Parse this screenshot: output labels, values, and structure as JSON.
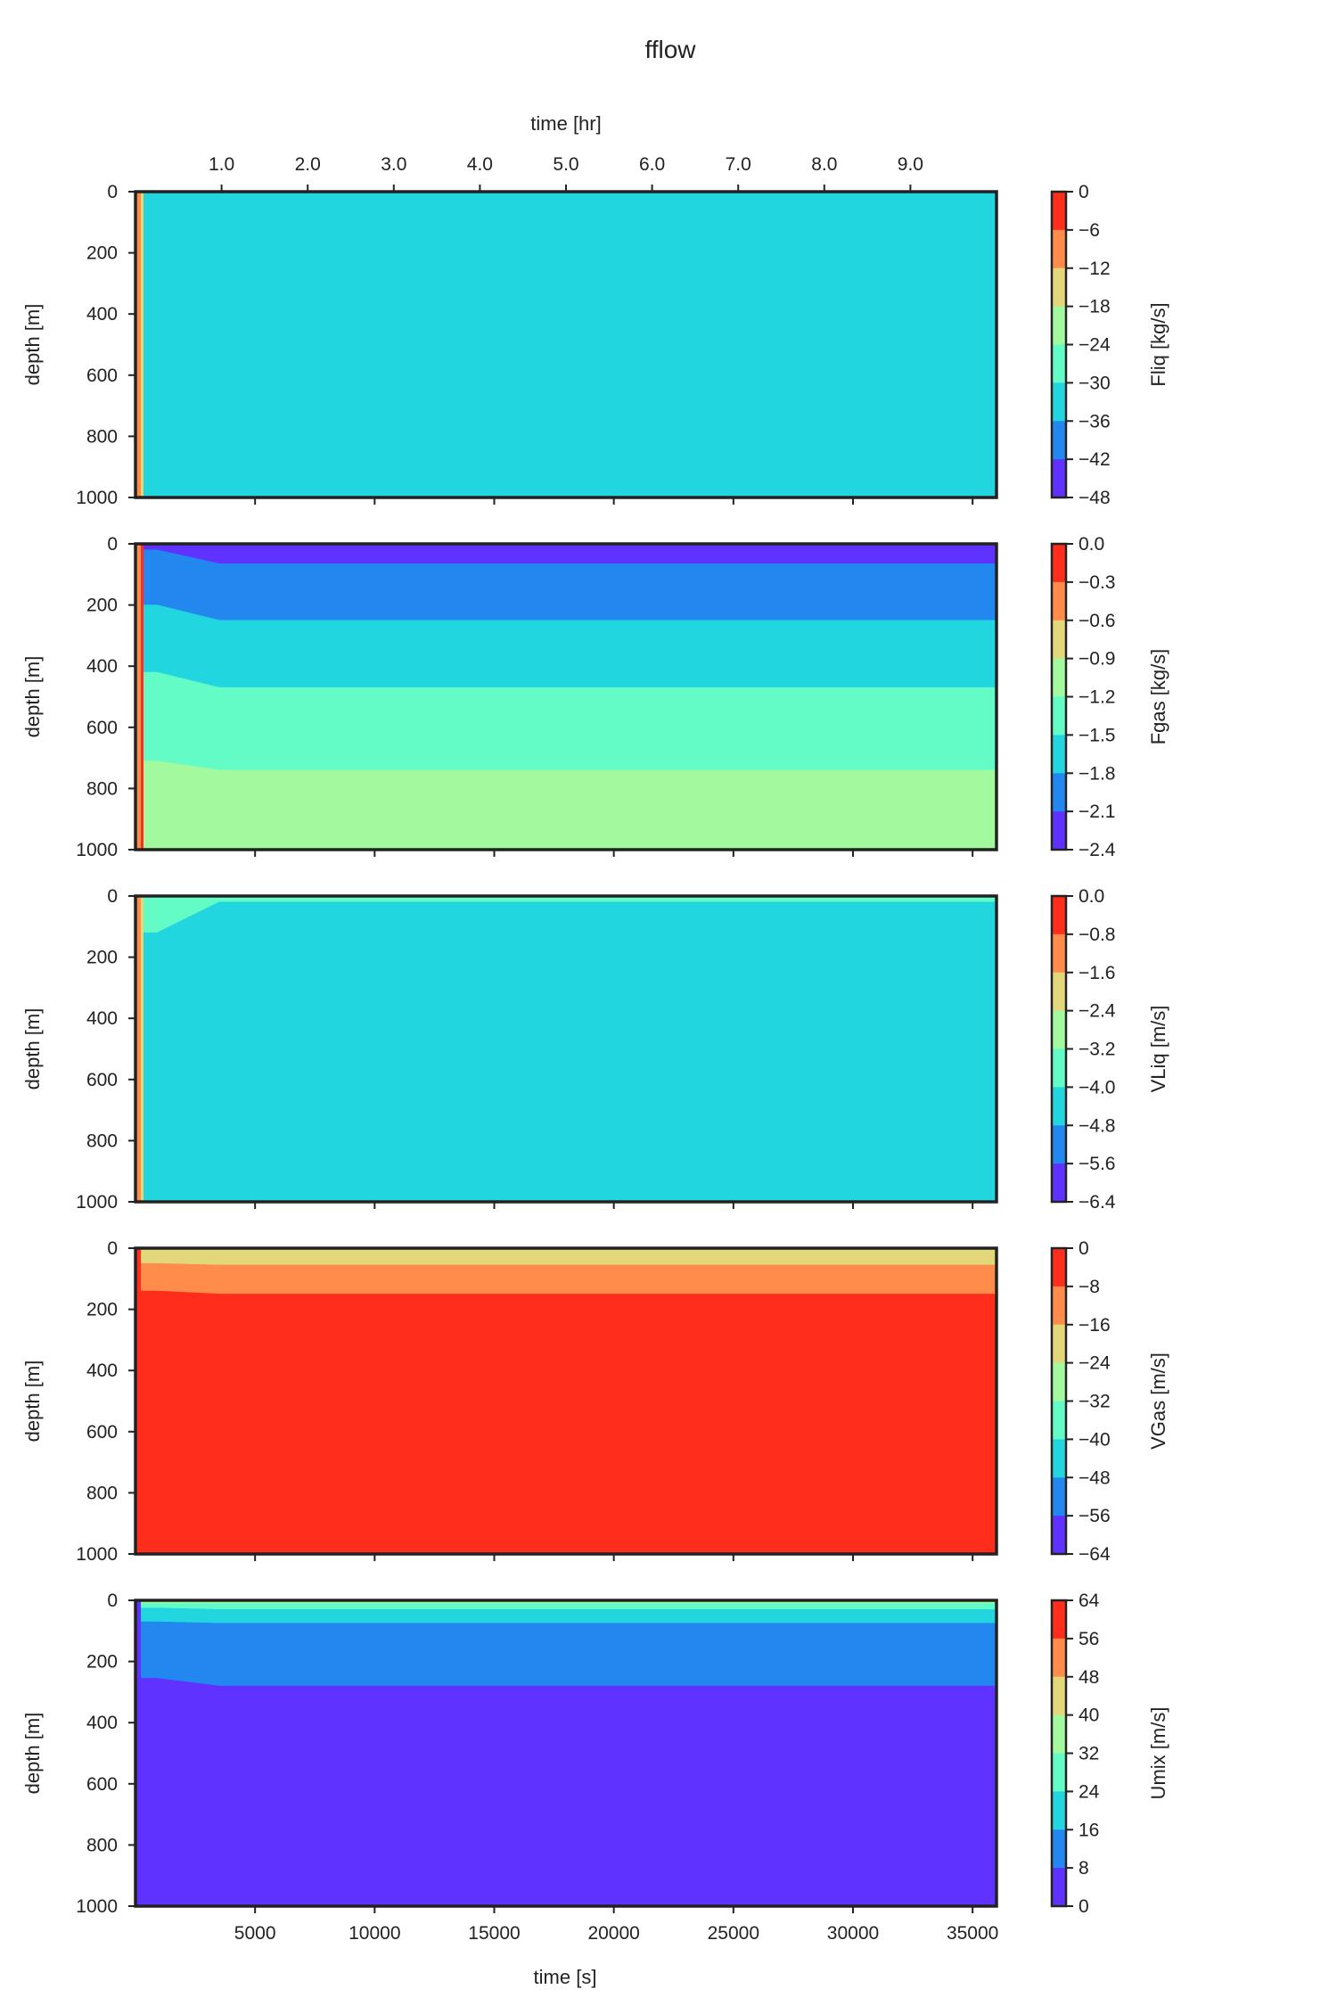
{
  "figure": {
    "title": "fflow",
    "top_xlabel": "time [hr]",
    "bottom_xlabel": "time [s]"
  },
  "chart_data": {
    "type": "heatmap",
    "title": "fflow",
    "xlabel": "time [s]",
    "xlabel_top": "time [hr]",
    "xlim": [
      0,
      36000
    ],
    "xticks": [
      5000,
      10000,
      15000,
      20000,
      25000,
      30000,
      35000
    ],
    "xticks_top_hr": [
      "1.0",
      "2.0",
      "3.0",
      "4.0",
      "5.0",
      "6.0",
      "7.0",
      "8.0",
      "9.0"
    ],
    "ylabel": "depth [m]",
    "ylim": [
      1000,
      0
    ],
    "yticks": [
      0,
      200,
      400,
      600,
      800,
      1000
    ],
    "colormap": "rainbow",
    "level_colors": [
      "#6032ff",
      "#2288f0",
      "#22d6e0",
      "#64fcc6",
      "#a2f99e",
      "#e2d77a",
      "#ff8c4a",
      "#ff2e1c"
    ],
    "panels": [
      {
        "name": "Fliq",
        "cbar_label": "Fliq [kg/s]",
        "levels": [
          -48,
          -42,
          -36,
          -30,
          -24,
          -18,
          -12,
          -6,
          0
        ],
        "tick_labels": [
          "0",
          "−6",
          "−12",
          "−18",
          "−24",
          "−30",
          "−36",
          "−42",
          "−48"
        ],
        "initial_strips": [
          {
            "t": [
              0,
              360
            ],
            "color_index": 6
          },
          {
            "t": [
              360,
              0
            ],
            "color_index": 5
          }
        ],
        "bands": [
          {
            "level_range": [
              -36,
              -30
            ],
            "color_index": 2,
            "depth_initial": [
              0,
              1000
            ],
            "depth_final": [
              0,
              1000
            ]
          }
        ]
      },
      {
        "name": "Fgas",
        "cbar_label": "Fgas [kg/s]",
        "levels": [
          -2.4,
          -2.1,
          -1.8,
          -1.5,
          -1.2,
          -0.9,
          -0.6,
          -0.3,
          0.0
        ],
        "tick_labels": [
          "0.0",
          "−0.3",
          "−0.6",
          "−0.9",
          "−1.2",
          "−1.5",
          "−1.8",
          "−2.1",
          "−2.4"
        ],
        "initial_strips": [
          {
            "t": [
              0,
              180
            ],
            "color_index": 6
          },
          {
            "t": [
              180,
              0
            ],
            "color_index": 7
          }
        ],
        "bands": [
          {
            "level_range": [
              -2.4,
              -2.1
            ],
            "color_index": 0,
            "depth_initial": [
              0,
              20
            ],
            "depth_final": [
              0,
              65
            ]
          },
          {
            "level_range": [
              -2.1,
              -1.8
            ],
            "color_index": 1,
            "depth_initial": [
              20,
              200
            ],
            "depth_final": [
              65,
              250
            ]
          },
          {
            "level_range": [
              -1.8,
              -1.5
            ],
            "color_index": 2,
            "depth_initial": [
              200,
              420
            ],
            "depth_final": [
              250,
              470
            ]
          },
          {
            "level_range": [
              -1.5,
              -1.2
            ],
            "color_index": 3,
            "depth_initial": [
              420,
              710
            ],
            "depth_final": [
              470,
              740
            ]
          },
          {
            "level_range": [
              -1.2,
              -0.9
            ],
            "color_index": 4,
            "depth_initial": [
              710,
              1000
            ],
            "depth_final": [
              740,
              1000
            ]
          }
        ]
      },
      {
        "name": "VLiq",
        "cbar_label": "VLiq [m/s]",
        "levels": [
          -6.4,
          -5.6,
          -4.8,
          -4.0,
          -3.2,
          -2.4,
          -1.6,
          -0.8,
          0.0
        ],
        "tick_labels": [
          "0.0",
          "−0.8",
          "−1.6",
          "−2.4",
          "−3.2",
          "−4.0",
          "−4.8",
          "−5.6",
          "−6.4"
        ],
        "initial_strips": [
          {
            "t": [
              0,
              360
            ],
            "color_index": 6
          },
          {
            "t": [
              360,
              0
            ],
            "color_index": 5
          }
        ],
        "bands": [
          {
            "level_range": [
              -4.0,
              -3.2
            ],
            "color_index": 3,
            "depth_initial": [
              0,
              120
            ],
            "depth_final": [
              0,
              20
            ]
          },
          {
            "level_range": [
              -4.8,
              -4.0
            ],
            "color_index": 2,
            "depth_initial": [
              120,
              1000
            ],
            "depth_final": [
              20,
              1000
            ]
          }
        ]
      },
      {
        "name": "VGas",
        "cbar_label": "VGas [m/s]",
        "levels": [
          -64,
          -56,
          -48,
          -40,
          -32,
          -24,
          -16,
          -8,
          0
        ],
        "tick_labels": [
          "0",
          "−8",
          "−16",
          "−24",
          "−32",
          "−40",
          "−48",
          "−56",
          "−64"
        ],
        "initial_strips": [
          {
            "t": [
              0,
              180
            ],
            "color_index": 7
          }
        ],
        "bands": [
          {
            "level_range": [
              -32,
              -24
            ],
            "color_index": 4,
            "depth_initial": [
              0,
              5
            ],
            "depth_final": [
              0,
              5
            ]
          },
          {
            "level_range": [
              -24,
              -16
            ],
            "color_index": 5,
            "depth_initial": [
              5,
              50
            ],
            "depth_final": [
              5,
              55
            ]
          },
          {
            "level_range": [
              -16,
              -8
            ],
            "color_index": 6,
            "depth_initial": [
              50,
              140
            ],
            "depth_final": [
              55,
              150
            ]
          },
          {
            "level_range": [
              -8,
              0
            ],
            "color_index": 7,
            "depth_initial": [
              140,
              1000
            ],
            "depth_final": [
              150,
              1000
            ]
          }
        ]
      },
      {
        "name": "Umix",
        "cbar_label": "Umix [m/s]",
        "levels": [
          0,
          8,
          16,
          24,
          32,
          40,
          48,
          56,
          64
        ],
        "tick_labels": [
          "64",
          "56",
          "48",
          "40",
          "32",
          "24",
          "16",
          "8",
          "0"
        ],
        "initial_strips": [
          {
            "t": [
              0,
              180
            ],
            "color_index": 0
          }
        ],
        "bands": [
          {
            "level_range": [
              32,
              40
            ],
            "color_index": 4,
            "depth_initial": [
              0,
              10
            ],
            "depth_final": [
              0,
              10
            ]
          },
          {
            "level_range": [
              24,
              32
            ],
            "color_index": 3,
            "depth_initial": [
              10,
              25
            ],
            "depth_final": [
              10,
              30
            ]
          },
          {
            "level_range": [
              16,
              24
            ],
            "color_index": 2,
            "depth_initial": [
              25,
              70
            ],
            "depth_final": [
              30,
              75
            ]
          },
          {
            "level_range": [
              8,
              16
            ],
            "color_index": 1,
            "depth_initial": [
              70,
              255
            ],
            "depth_final": [
              75,
              280
            ]
          },
          {
            "level_range": [
              0,
              8
            ],
            "color_index": 0,
            "depth_initial": [
              255,
              1000
            ],
            "depth_final": [
              280,
              1000
            ]
          }
        ]
      }
    ]
  }
}
